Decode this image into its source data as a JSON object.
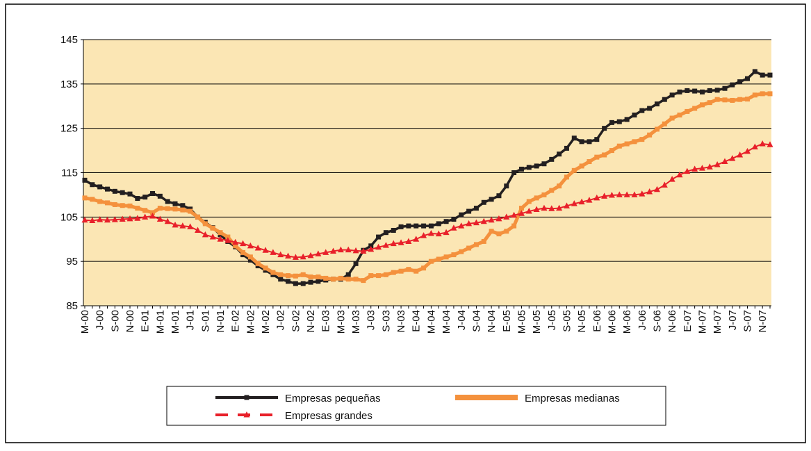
{
  "chart_data": {
    "type": "line",
    "categories": [
      "M-00",
      null,
      "J-00",
      null,
      "S-00",
      null,
      "N-00",
      null,
      "E-01",
      null,
      "M-01",
      null,
      "M-01",
      null,
      "J-01",
      null,
      "S-01",
      null,
      "N-01",
      null,
      "E-02",
      null,
      "M-02",
      null,
      "M-02",
      null,
      "J-02",
      null,
      "S-02",
      null,
      "N-02",
      null,
      "E-03",
      null,
      "M-03",
      null,
      "M-03",
      null,
      "J-03",
      null,
      "S-03",
      null,
      "N-03",
      null,
      "E-04",
      null,
      "M-04",
      null,
      "M-04",
      null,
      "J-04",
      null,
      "S-04",
      null,
      "N-04",
      null,
      "E-05",
      null,
      "M-05",
      null,
      "M-05",
      null,
      "J-05",
      null,
      "S-05",
      null,
      "N-05",
      null,
      "E-06",
      null,
      "M-06",
      null,
      "M-06",
      null,
      "J-06",
      null,
      "S-06",
      null,
      "N-06",
      null,
      "E-07",
      null,
      "M-07",
      null,
      "M-07",
      null,
      "J-07",
      null,
      "S-07",
      null,
      "N-07",
      null
    ],
    "series": [
      {
        "name": "Empresas pequeñas",
        "color": "#231f20",
        "marker": "square",
        "dash": false,
        "values": [
          113.3,
          112.3,
          111.8,
          111.3,
          110.8,
          110.5,
          110.2,
          109.2,
          109.5,
          110.3,
          109.7,
          108.5,
          108,
          107.6,
          106.8,
          105,
          103.8,
          102.6,
          101,
          99.5,
          98.3,
          96.5,
          95.3,
          94,
          93,
          92,
          91,
          90.5,
          90,
          90,
          90.3,
          90.5,
          90.8,
          91,
          91,
          92,
          94.5,
          97.5,
          98.5,
          100.5,
          101.5,
          102,
          102.8,
          103,
          103,
          103,
          103,
          103.5,
          104,
          104.5,
          105.5,
          106.3,
          107,
          108.3,
          109,
          109.8,
          112,
          115,
          115.8,
          116.2,
          116.5,
          117,
          118,
          119.2,
          120.5,
          122.8,
          122,
          122,
          122.5,
          125,
          126.3,
          126.5,
          127,
          128,
          129,
          129.5,
          130.5,
          131.5,
          132.5,
          133.2,
          133.5,
          133.4,
          133.2,
          133.5,
          133.6,
          134,
          134.8,
          135.5,
          136.2,
          137.8,
          137,
          137
        ]
      },
      {
        "name": "Empresas medianas",
        "color": "#f4913d",
        "marker": "square",
        "dash": false,
        "values": [
          109.3,
          109,
          108.5,
          108.2,
          107.8,
          107.6,
          107.5,
          107,
          106.5,
          106,
          107,
          106.9,
          106.8,
          106.6,
          106.3,
          105,
          103.5,
          102.5,
          101.5,
          100.5,
          98.5,
          97,
          96,
          94.5,
          93.5,
          92.5,
          92,
          91.8,
          91.7,
          92,
          91.5,
          91.5,
          91.2,
          91,
          91.2,
          91,
          91,
          90.7,
          91.8,
          91.8,
          92,
          92.5,
          92.8,
          93.2,
          92.8,
          93.5,
          95,
          95.5,
          96,
          96.5,
          97.2,
          98,
          98.8,
          99.5,
          101.8,
          101.2,
          101.8,
          103,
          107,
          108.5,
          109.3,
          110,
          111,
          112,
          114,
          115.5,
          116.5,
          117.5,
          118.5,
          119,
          120,
          121,
          121.5,
          122,
          122.5,
          123.5,
          124.8,
          126,
          127.3,
          128,
          128.8,
          129.5,
          130.3,
          130.8,
          131.5,
          131.4,
          131.3,
          131.5,
          131.6,
          132.5,
          132.8,
          132.8
        ]
      },
      {
        "name": "Empresas grandes",
        "color": "#e8202a",
        "marker": "triangle",
        "dash": true,
        "values": [
          104.3,
          104.2,
          104.4,
          104.3,
          104.4,
          104.5,
          104.6,
          104.7,
          105,
          105.2,
          104.5,
          104,
          103.2,
          103,
          102.8,
          102,
          101,
          100.5,
          100,
          99.7,
          99.3,
          99,
          98.5,
          98,
          97.5,
          97,
          96.5,
          96.2,
          95.9,
          96,
          96.3,
          96.7,
          97,
          97.3,
          97.6,
          97.6,
          97.4,
          97.3,
          97.7,
          98.2,
          98.6,
          99,
          99.2,
          99.5,
          100,
          100.8,
          101.3,
          101.2,
          101.5,
          102.5,
          103,
          103.5,
          103.7,
          104,
          104.3,
          104.6,
          105,
          105.4,
          105.8,
          106.3,
          106.7,
          107,
          106.9,
          107,
          107.5,
          108,
          108.4,
          108.8,
          109.3,
          109.7,
          109.9,
          110,
          110,
          110,
          110.2,
          110.7,
          111.2,
          112.2,
          113.5,
          114.5,
          115.3,
          115.8,
          116,
          116.3,
          116.8,
          117.5,
          118.2,
          119,
          119.8,
          120.8,
          121.5,
          121.3
        ]
      }
    ],
    "ylim": [
      85,
      145
    ],
    "yticks": [
      85,
      95,
      105,
      115,
      125,
      135,
      145
    ],
    "grid": true
  }
}
